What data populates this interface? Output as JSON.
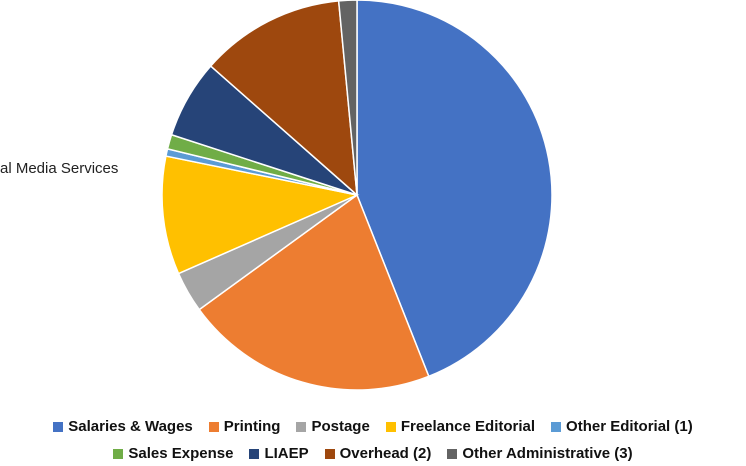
{
  "chart_data": {
    "type": "pie",
    "title": "",
    "slices": [
      {
        "label": "Salaries & Wages",
        "value": 44.0,
        "color": "#4472C4"
      },
      {
        "label": "Printing",
        "value": 21.0,
        "color": "#ED7D31"
      },
      {
        "label": "Postage",
        "value": 3.4,
        "color": "#A5A5A5"
      },
      {
        "label": "Freelance Editorial",
        "value": 9.8,
        "color": "#FFC000"
      },
      {
        "label": "Other Editorial (1)",
        "value": 0.6,
        "color": "#5B9BD5"
      },
      {
        "label": "Sales Expense",
        "value": 1.2,
        "color": "#70AD47"
      },
      {
        "label": "LIAEP",
        "value": 6.5,
        "color": "#264478"
      },
      {
        "label": "Overhead (2)",
        "value": 12.0,
        "color": "#9E480E"
      },
      {
        "label": "Other Administrative (3)",
        "value": 1.5,
        "color": "#636363"
      }
    ],
    "annotations": [
      "al Media Services"
    ],
    "legend_position": "bottom"
  },
  "legend": {
    "row1": [
      0,
      1,
      2,
      3,
      4
    ],
    "row2": [
      5,
      6,
      7,
      8
    ]
  }
}
